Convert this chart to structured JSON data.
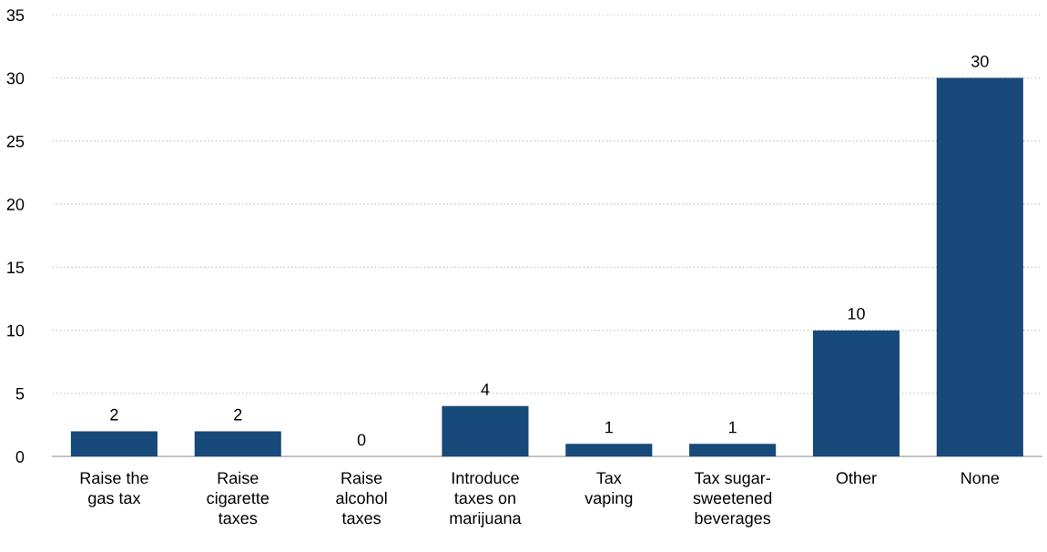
{
  "chart_data": {
    "type": "bar",
    "categories": [
      "Raise the\ngas tax",
      "Raise\ncigarette\ntaxes",
      "Raise\nalcohol\ntaxes",
      "Introduce\ntaxes on\nmarijuana",
      "Tax\nvaping",
      "Tax sugar-\nsweetened\nbeverages",
      "Other",
      "None"
    ],
    "values": [
      2,
      2,
      0,
      4,
      1,
      1,
      10,
      30
    ],
    "color": "#17497a",
    "ylim": [
      0,
      35
    ],
    "yticks": [
      0,
      5,
      10,
      15,
      20,
      25,
      30,
      35
    ],
    "grid": "y",
    "data_labels": true
  }
}
